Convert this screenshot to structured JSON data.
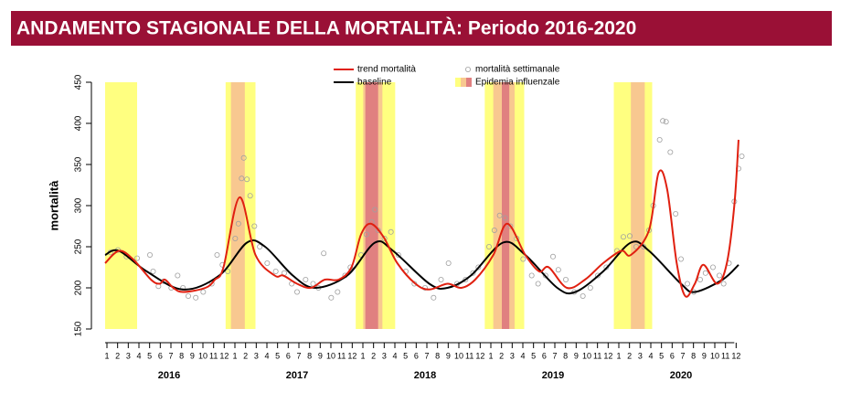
{
  "chart_data": {
    "type": "line",
    "title": "ANDAMENTO STAGIONALE DELLA MORTALITÀ: Periodo 2016-2020",
    "y_label": "mortalità",
    "xlim": [
      0,
      60
    ],
    "ylim": [
      150,
      450
    ],
    "yticks": [
      150,
      200,
      250,
      300,
      350,
      400,
      450
    ],
    "xticks": [
      {
        "value": 0,
        "label": "1"
      },
      {
        "value": 1,
        "label": "2"
      },
      {
        "value": 2,
        "label": "3"
      },
      {
        "value": 3,
        "label": "4"
      },
      {
        "value": 4,
        "label": "5"
      },
      {
        "value": 5,
        "label": "6"
      },
      {
        "value": 6,
        "label": "7"
      },
      {
        "value": 7,
        "label": "8"
      },
      {
        "value": 8,
        "label": "9"
      },
      {
        "value": 9,
        "label": "10"
      },
      {
        "value": 10,
        "label": "11"
      },
      {
        "value": 11,
        "label": "12"
      },
      {
        "value": 12,
        "label": "1"
      },
      {
        "value": 13,
        "label": "2"
      },
      {
        "value": 14,
        "label": "3"
      },
      {
        "value": 15,
        "label": "4"
      },
      {
        "value": 16,
        "label": "5"
      },
      {
        "value": 17,
        "label": "6"
      },
      {
        "value": 18,
        "label": "7"
      },
      {
        "value": 19,
        "label": "8"
      },
      {
        "value": 20,
        "label": "9"
      },
      {
        "value": 21,
        "label": "10"
      },
      {
        "value": 22,
        "label": "11"
      },
      {
        "value": 23,
        "label": "12"
      },
      {
        "value": 24,
        "label": "1"
      },
      {
        "value": 25,
        "label": "2"
      },
      {
        "value": 26,
        "label": "3"
      },
      {
        "value": 27,
        "label": "4"
      },
      {
        "value": 28,
        "label": "5"
      },
      {
        "value": 29,
        "label": "6"
      },
      {
        "value": 30,
        "label": "7"
      },
      {
        "value": 31,
        "label": "8"
      },
      {
        "value": 32,
        "label": "9"
      },
      {
        "value": 33,
        "label": "10"
      },
      {
        "value": 34,
        "label": "11"
      },
      {
        "value": 35,
        "label": "12"
      },
      {
        "value": 36,
        "label": "1"
      },
      {
        "value": 37,
        "label": "2"
      },
      {
        "value": 38,
        "label": "3"
      },
      {
        "value": 39,
        "label": "4"
      },
      {
        "value": 40,
        "label": "5"
      },
      {
        "value": 41,
        "label": "6"
      },
      {
        "value": 42,
        "label": "7"
      },
      {
        "value": 43,
        "label": "8"
      },
      {
        "value": 44,
        "label": "9"
      },
      {
        "value": 45,
        "label": "10"
      },
      {
        "value": 46,
        "label": "11"
      },
      {
        "value": 47,
        "label": "12"
      },
      {
        "value": 48,
        "label": "1"
      },
      {
        "value": 49,
        "label": "2"
      },
      {
        "value": 50,
        "label": "3"
      },
      {
        "value": 51,
        "label": "4"
      },
      {
        "value": 52,
        "label": "5"
      },
      {
        "value": 53,
        "label": "6"
      },
      {
        "value": 54,
        "label": "7"
      },
      {
        "value": 55,
        "label": "8"
      },
      {
        "value": 56,
        "label": "9"
      },
      {
        "value": 57,
        "label": "10"
      },
      {
        "value": 58,
        "label": "11"
      },
      {
        "value": 59,
        "label": "12"
      }
    ],
    "years": [
      {
        "value": 6,
        "label": "2016"
      },
      {
        "value": 18,
        "label": "2017"
      },
      {
        "value": 30,
        "label": "2018"
      },
      {
        "value": 42,
        "label": "2019"
      },
      {
        "value": 54,
        "label": "2020"
      }
    ],
    "series": [
      {
        "name": "trend mortalità",
        "color": "#e02010",
        "style": "line",
        "x": [
          0,
          1.3,
          2.6,
          4.3,
          5.1,
          5.6,
          6.4,
          7.3,
          9.4,
          10.3,
          11.1,
          12.6,
          14.1,
          15.9,
          16.7,
          18,
          19.3,
          20.6,
          21.9,
          23.1,
          24,
          24.9,
          26.1,
          27.4,
          29.1,
          30.4,
          32.1,
          33.4,
          34.7,
          36.4,
          37.7,
          39.4,
          40.7,
          41.6,
          43.3,
          45,
          46.7,
          48.4,
          49.3,
          51,
          51.9,
          52.7,
          53.6,
          54.4,
          55.3,
          56.1,
          57.4,
          58.3,
          59,
          59.4
        ],
        "values": [
          230,
          245,
          235,
          210,
          205,
          210,
          200,
          195,
          200,
          210,
          225,
          310,
          240,
          215,
          215,
          205,
          200,
          210,
          210,
          225,
          265,
          278,
          262,
          230,
          205,
          198,
          205,
          200,
          210,
          240,
          278,
          240,
          220,
          225,
          200,
          210,
          230,
          245,
          240,
          270,
          340,
          320,
          230,
          190,
          205,
          228,
          205,
          230,
          300,
          380
        ]
      },
      {
        "name": "baseline",
        "color": "#000000",
        "style": "line",
        "x": [
          0,
          1.3,
          3.9,
          7.3,
          10.7,
          13.3,
          15,
          17.6,
          19.7,
          22.7,
          25.3,
          27,
          30.4,
          32.1,
          34.3,
          37.3,
          39.4,
          42.4,
          44.1,
          46.7,
          49.3,
          51,
          54,
          55.3,
          57.9,
          59.4
        ],
        "values": [
          240,
          245,
          220,
          198,
          215,
          255,
          250,
          215,
          200,
          215,
          255,
          245,
          205,
          200,
          215,
          255,
          240,
          200,
          195,
          220,
          255,
          245,
          205,
          195,
          210,
          228
        ]
      },
      {
        "name": "mortalità settimanale",
        "color": "#a0a0a0",
        "style": "points",
        "x": [
          0.5,
          1.2,
          2,
          3,
          4.2,
          4.5,
          5,
          5.5,
          6.2,
          6.8,
          7.3,
          7.8,
          8.5,
          9.2,
          10,
          10.5,
          11,
          11.5,
          12.2,
          12.5,
          12.8,
          13,
          13.3,
          13.6,
          14,
          14.5,
          15.2,
          16,
          16.8,
          17.5,
          18,
          18.8,
          19.5,
          20,
          20.5,
          21.2,
          21.8,
          22.5,
          23,
          24,
          24.5,
          25,
          25.3,
          25.6,
          26.2,
          26.8,
          27.5,
          28.2,
          29,
          30,
          30.8,
          31.5,
          32.2,
          33,
          33.8,
          34.5,
          35,
          36,
          36.5,
          37,
          37.5,
          38,
          38.6,
          39.2,
          40,
          40.6,
          41.3,
          42,
          42.5,
          43.2,
          44,
          44.8,
          45.5,
          46.2,
          47,
          48,
          48.6,
          49.2,
          49.8,
          50.5,
          51,
          51.4,
          52,
          52.3,
          52.6,
          53,
          53.5,
          54,
          54.6,
          55.2,
          55.8,
          56.3,
          57,
          57.6,
          58,
          58.5,
          59,
          59.4,
          59.7
        ],
        "values": [
          243,
          246,
          238,
          236,
          240,
          220,
          202,
          208,
          200,
          215,
          200,
          190,
          188,
          195,
          205,
          240,
          228,
          220,
          260,
          278,
          333,
          358,
          332,
          312,
          275,
          250,
          230,
          220,
          218,
          205,
          195,
          210,
          205,
          200,
          242,
          188,
          195,
          215,
          225,
          240,
          265,
          280,
          295,
          270,
          260,
          268,
          240,
          220,
          205,
          200,
          188,
          210,
          230,
          205,
          210,
          218,
          225,
          250,
          270,
          288,
          285,
          275,
          260,
          235,
          215,
          205,
          215,
          238,
          222,
          210,
          195,
          190,
          200,
          215,
          225,
          245,
          262,
          263,
          250,
          250,
          270,
          300,
          380,
          403,
          402,
          365,
          290,
          235,
          205,
          195,
          210,
          218,
          225,
          215,
          205,
          230,
          305,
          345,
          360
        ]
      }
    ],
    "epidemic": {
      "name": "Epidemia influenzale",
      "levels": [
        {
          "color": "#ffff80",
          "bands": [
            [
              0,
              3
            ],
            [
              11.3,
              14.1
            ],
            [
              23.5,
              27.2
            ],
            [
              35.6,
              39.3
            ],
            [
              47.7,
              51.3
            ]
          ]
        },
        {
          "color": "#f8c890",
          "bands": [
            [
              11.8,
              13.1
            ],
            [
              24.2,
              26
            ],
            [
              36.4,
              38.4
            ],
            [
              49.3,
              50.6
            ]
          ]
        },
        {
          "color": "#e08080",
          "bands": [
            [
              24.4,
              25.6
            ],
            [
              37.2,
              37.9
            ]
          ]
        }
      ]
    }
  }
}
